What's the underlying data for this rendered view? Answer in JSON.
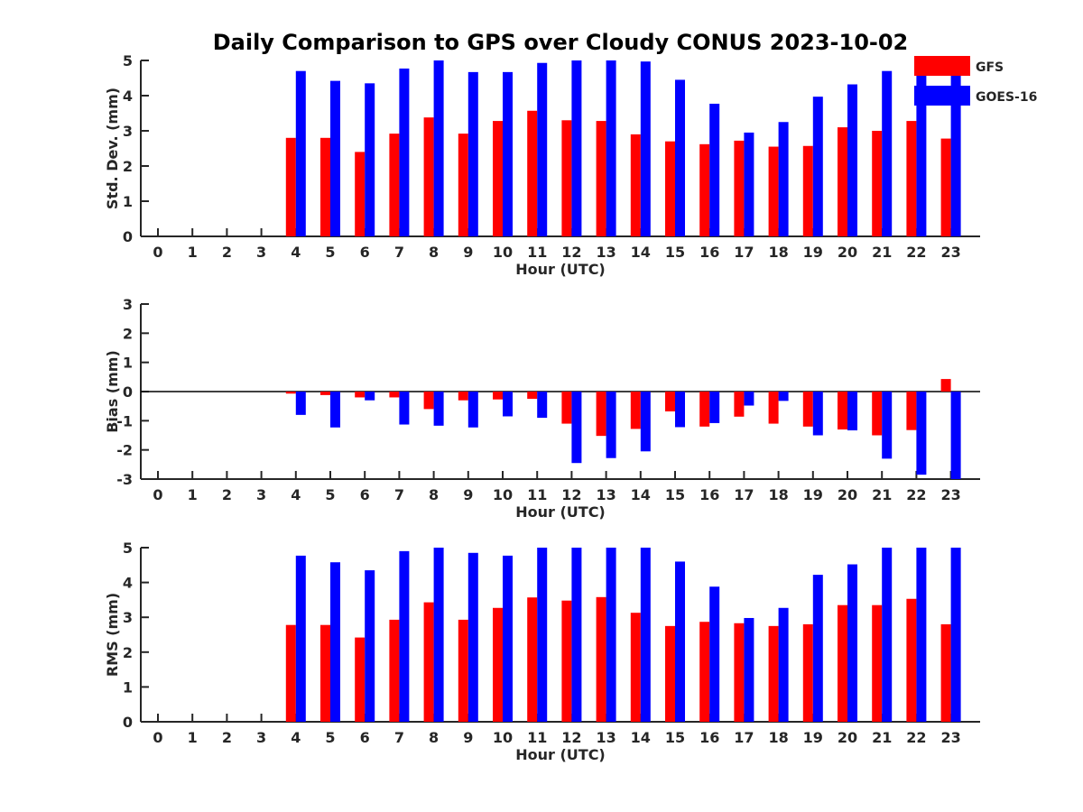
{
  "title": "Daily Comparison to GPS over Cloudy CONUS 2023-10-02",
  "colors": {
    "GFS": "#ff0000",
    "GOES-16": "#0000ff",
    "axis": "#262626"
  },
  "legend": {
    "placement": "top-right",
    "entries": [
      {
        "name": "GFS",
        "color": "#ff0000"
      },
      {
        "name": "GOES-16",
        "color": "#0000ff"
      }
    ]
  },
  "chart_data": [
    {
      "type": "bar",
      "id": "std",
      "ylabel": "Std. Dev. (mm)",
      "xlabel": "Hour (UTC)",
      "ylim": [
        0,
        5
      ],
      "yticks": [
        0,
        1,
        2,
        3,
        4,
        5
      ],
      "categories": [
        "0",
        "1",
        "2",
        "3",
        "4",
        "5",
        "6",
        "7",
        "8",
        "9",
        "10",
        "11",
        "12",
        "13",
        "14",
        "15",
        "16",
        "17",
        "18",
        "19",
        "20",
        "21",
        "22",
        "23"
      ],
      "series": [
        {
          "name": "GFS",
          "values": [
            null,
            null,
            null,
            null,
            2.8,
            2.8,
            2.4,
            2.92,
            3.38,
            2.92,
            3.28,
            3.57,
            3.3,
            3.28,
            2.9,
            2.7,
            2.62,
            2.72,
            2.55,
            2.57,
            3.1,
            3.0,
            3.28,
            2.78
          ]
        },
        {
          "name": "GOES-16",
          "values": [
            null,
            null,
            null,
            null,
            4.7,
            4.42,
            4.35,
            4.77,
            5.0,
            4.67,
            4.67,
            4.93,
            5.0,
            5.0,
            4.97,
            4.45,
            3.77,
            2.95,
            3.25,
            3.97,
            4.32,
            4.7,
            5.0,
            4.7
          ]
        }
      ]
    },
    {
      "type": "bar",
      "id": "bias",
      "ylabel": "Bias (mm)",
      "xlabel": "Hour (UTC)",
      "ylim": [
        -3,
        3
      ],
      "yticks": [
        -3,
        -2,
        -1,
        0,
        1,
        2,
        3
      ],
      "zero_line": true,
      "categories": [
        "0",
        "1",
        "2",
        "3",
        "4",
        "5",
        "6",
        "7",
        "8",
        "9",
        "10",
        "11",
        "12",
        "13",
        "14",
        "15",
        "16",
        "17",
        "18",
        "19",
        "20",
        "21",
        "22",
        "23"
      ],
      "series": [
        {
          "name": "GFS",
          "values": [
            null,
            null,
            null,
            null,
            -0.07,
            -0.12,
            -0.2,
            -0.2,
            -0.6,
            -0.3,
            -0.27,
            -0.25,
            -1.1,
            -1.52,
            -1.28,
            -0.68,
            -1.2,
            -0.86,
            -1.1,
            -1.2,
            -1.3,
            -1.5,
            -1.32,
            0.43
          ]
        },
        {
          "name": "GOES-16",
          "values": [
            null,
            null,
            null,
            null,
            -0.8,
            -1.23,
            -0.3,
            -1.13,
            -1.17,
            -1.23,
            -0.85,
            -0.9,
            -2.45,
            -2.28,
            -2.05,
            -1.22,
            -1.08,
            -0.48,
            -0.32,
            -1.5,
            -1.33,
            -2.3,
            -2.85,
            -3.0
          ]
        }
      ]
    },
    {
      "type": "bar",
      "id": "rms",
      "ylabel": "RMS (mm)",
      "xlabel": "Hour (UTC)",
      "ylim": [
        0,
        5
      ],
      "yticks": [
        0,
        1,
        2,
        3,
        4,
        5
      ],
      "categories": [
        "0",
        "1",
        "2",
        "3",
        "4",
        "5",
        "6",
        "7",
        "8",
        "9",
        "10",
        "11",
        "12",
        "13",
        "14",
        "15",
        "16",
        "17",
        "18",
        "19",
        "20",
        "21",
        "22",
        "23"
      ],
      "series": [
        {
          "name": "GFS",
          "values": [
            null,
            null,
            null,
            null,
            2.78,
            2.78,
            2.42,
            2.93,
            3.43,
            2.93,
            3.27,
            3.57,
            3.48,
            3.58,
            3.13,
            2.75,
            2.87,
            2.83,
            2.75,
            2.8,
            3.35,
            3.35,
            3.53,
            2.8
          ]
        },
        {
          "name": "GOES-16",
          "values": [
            null,
            null,
            null,
            null,
            4.77,
            4.58,
            4.35,
            4.9,
            5.0,
            4.85,
            4.77,
            5.0,
            5.0,
            5.0,
            5.0,
            4.6,
            3.88,
            2.98,
            3.27,
            4.22,
            4.52,
            5.0,
            5.0,
            5.0
          ]
        }
      ]
    }
  ]
}
